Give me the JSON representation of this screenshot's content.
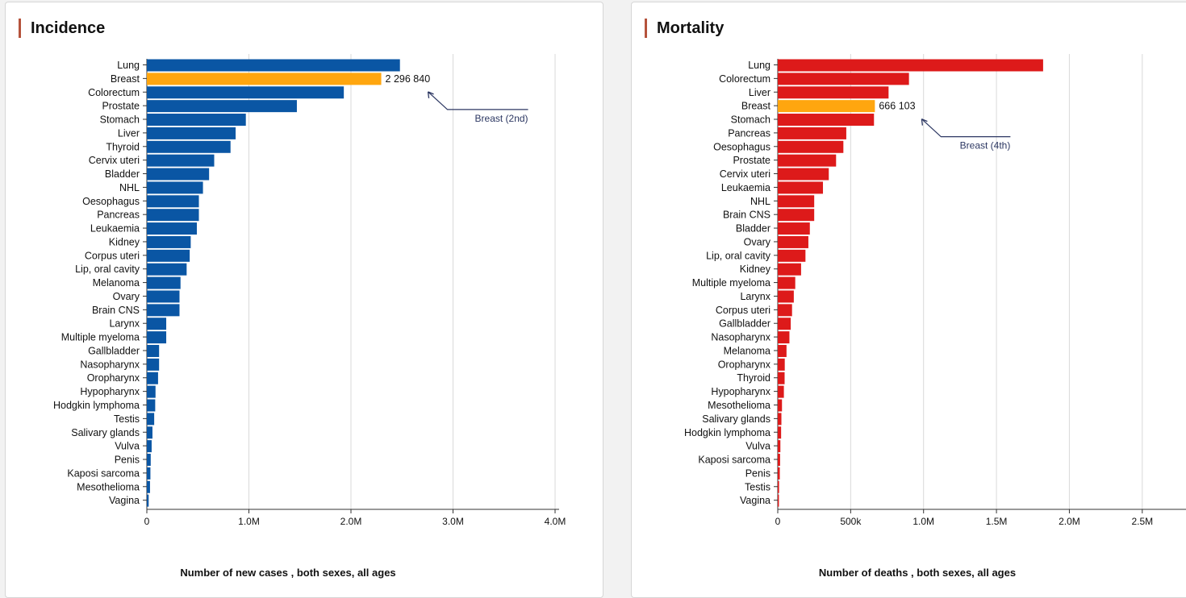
{
  "colors": {
    "incidence_bar": "#0a56a4",
    "mortality_bar": "#dd1a1a",
    "highlight_bar": "#ffa60f",
    "title_accent": "#b5533c",
    "annotation": "#2c3762",
    "grid": "#d9d9d9"
  },
  "panels": {
    "incidence": {
      "title": "Incidence",
      "xlabel": "Number of new cases , both sexes, all ages"
    },
    "mortality": {
      "title": "Mortality",
      "xlabel": "Number of deaths , both sexes, all ages"
    }
  },
  "chart_data": [
    {
      "type": "bar",
      "orientation": "horizontal",
      "title": "Incidence",
      "xlabel": "Number of new cases , both sexes, all ages",
      "xlim": [
        0,
        4000000
      ],
      "xticks": [
        0,
        1000000,
        2000000,
        3000000,
        4000000
      ],
      "xtick_labels": [
        "0",
        "1.0M",
        "2.0M",
        "3.0M",
        "4.0M"
      ],
      "grid": true,
      "highlight": "Breast",
      "highlight_value_label": "2 296 840",
      "annotation": "Breast (2nd)",
      "categories": [
        "Lung",
        "Breast",
        "Colorectum",
        "Prostate",
        "Stomach",
        "Liver",
        "Thyroid",
        "Cervix uteri",
        "Bladder",
        "NHL",
        "Oesophagus",
        "Pancreas",
        "Leukaemia",
        "Kidney",
        "Corpus uteri",
        "Lip, oral cavity",
        "Melanoma",
        "Ovary",
        "Brain CNS",
        "Larynx",
        "Multiple myeloma",
        "Gallbladder",
        "Nasopharynx",
        "Oropharynx",
        "Hypopharynx",
        "Hodgkin lymphoma",
        "Testis",
        "Salivary glands",
        "Vulva",
        "Penis",
        "Kaposi sarcoma",
        "Mesothelioma",
        "Vagina"
      ],
      "values": [
        2480000,
        2296840,
        1930000,
        1470000,
        970000,
        870000,
        820000,
        660000,
        610000,
        550000,
        510000,
        510000,
        490000,
        430000,
        420000,
        390000,
        330000,
        320000,
        320000,
        190000,
        190000,
        120000,
        120000,
        110000,
        85000,
        82000,
        72000,
        55000,
        47000,
        38000,
        35000,
        31000,
        18000
      ]
    },
    {
      "type": "bar",
      "orientation": "horizontal",
      "title": "Mortality",
      "xlabel": "Number of deaths , both sexes, all ages",
      "xlim": [
        0,
        2800000
      ],
      "xticks": [
        0,
        500000,
        1000000,
        1500000,
        2000000,
        2500000
      ],
      "xtick_labels": [
        "0",
        "500k",
        "1.0M",
        "1.5M",
        "2.0M",
        "2.5M"
      ],
      "grid": true,
      "highlight": "Breast",
      "highlight_value_label": "666 103",
      "annotation": "Breast (4th)",
      "categories": [
        "Lung",
        "Colorectum",
        "Liver",
        "Breast",
        "Stomach",
        "Pancreas",
        "Oesophagus",
        "Prostate",
        "Cervix uteri",
        "Leukaemia",
        "NHL",
        "Brain CNS",
        "Bladder",
        "Ovary",
        "Lip, oral cavity",
        "Kidney",
        "Multiple myeloma",
        "Larynx",
        "Corpus uteri",
        "Gallbladder",
        "Nasopharynx",
        "Melanoma",
        "Oropharynx",
        "Thyroid",
        "Hypopharynx",
        "Mesothelioma",
        "Salivary glands",
        "Hodgkin lymphoma",
        "Vulva",
        "Kaposi sarcoma",
        "Penis",
        "Testis",
        "Vagina"
      ],
      "values": [
        1820000,
        900000,
        760000,
        666103,
        660000,
        470000,
        450000,
        400000,
        350000,
        310000,
        250000,
        250000,
        220000,
        210000,
        190000,
        160000,
        120000,
        110000,
        98000,
        89000,
        80000,
        60000,
        48000,
        47000,
        42000,
        29000,
        25000,
        23000,
        18000,
        16000,
        14000,
        9000,
        8000
      ]
    }
  ]
}
